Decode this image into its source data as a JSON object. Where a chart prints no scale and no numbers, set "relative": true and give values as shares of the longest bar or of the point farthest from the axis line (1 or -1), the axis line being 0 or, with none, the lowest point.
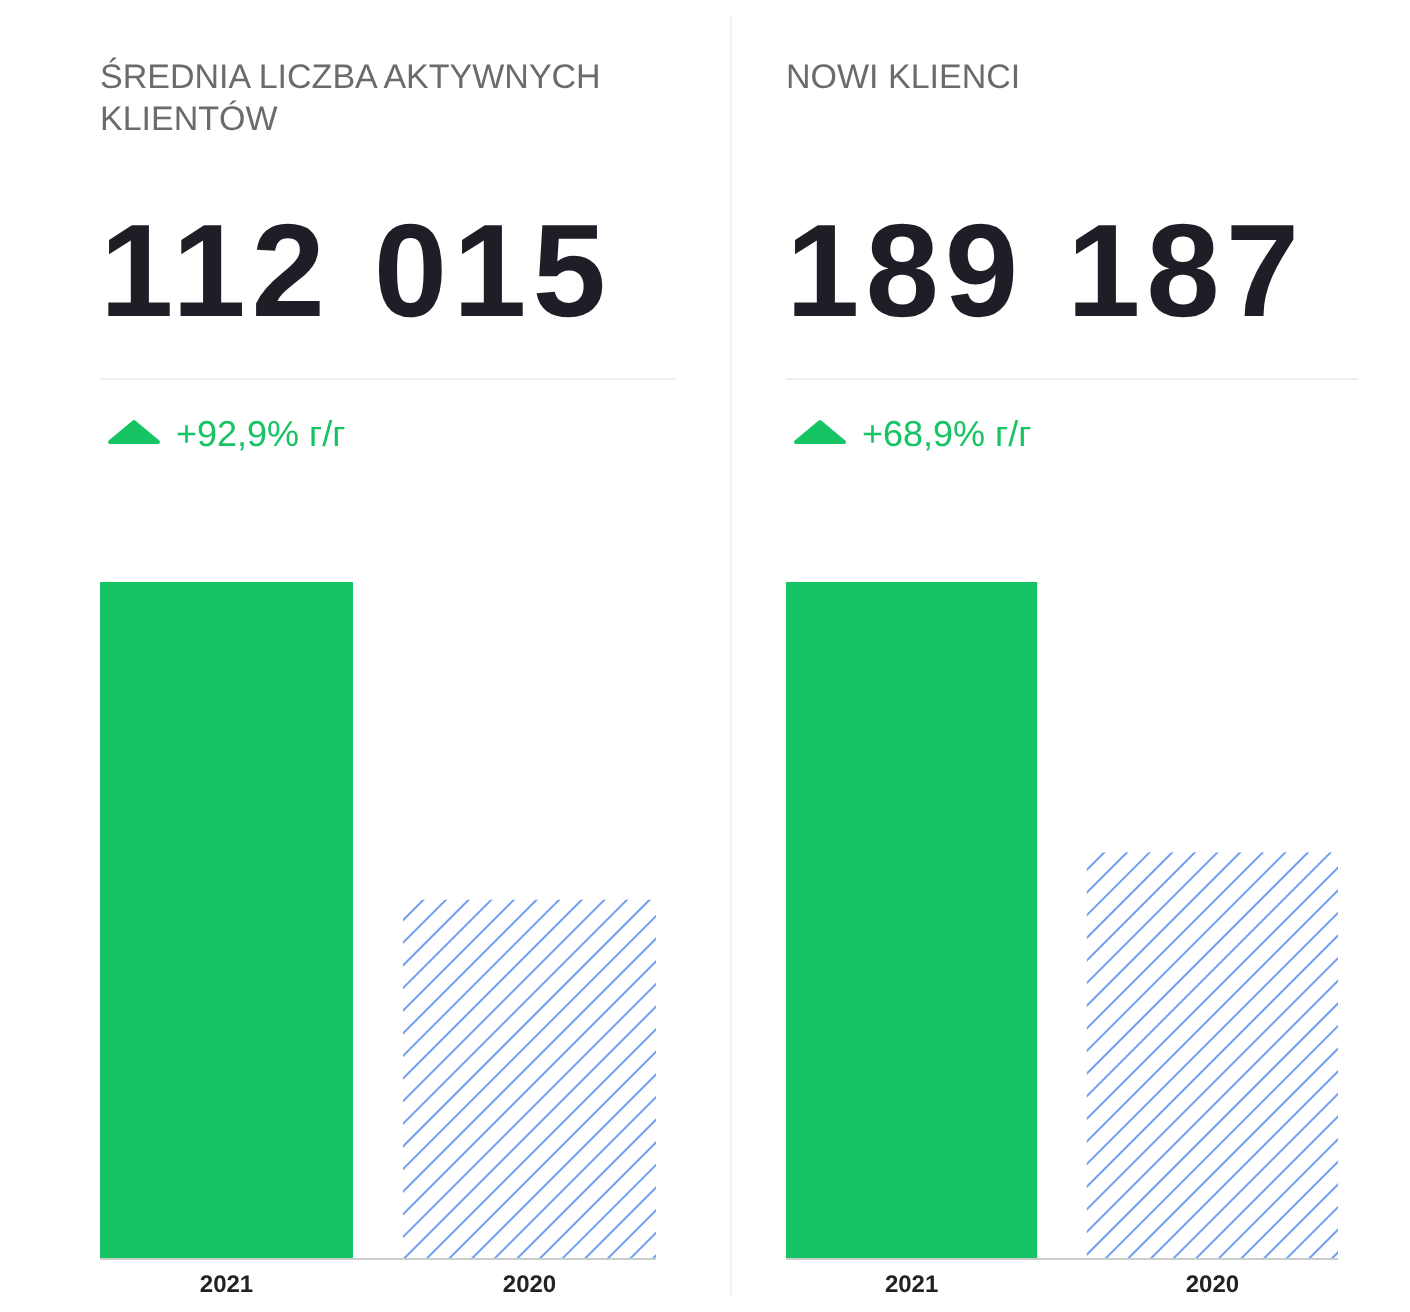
{
  "chart_data": [
    {
      "type": "bar",
      "relative": true,
      "title": "ŚREDNIA LICZBA AKTYWNYCH KLIENTÓW",
      "subtitle": "112 015",
      "annotations": [
        "+92,9% г/г"
      ],
      "categories": [
        "2021",
        "2020"
      ],
      "values": [
        1,
        0.53
      ],
      "colors": [
        "#17c463",
        "#6f9ff2"
      ]
    },
    {
      "type": "bar",
      "relative": true,
      "title": "NOWI KLIENCI",
      "subtitle": "189 187",
      "annotations": [
        "+68,9% г/г"
      ],
      "categories": [
        "2021",
        "2020"
      ],
      "values": [
        1,
        0.6
      ],
      "colors": [
        "#17c463",
        "#6f9ff2"
      ]
    }
  ]
}
